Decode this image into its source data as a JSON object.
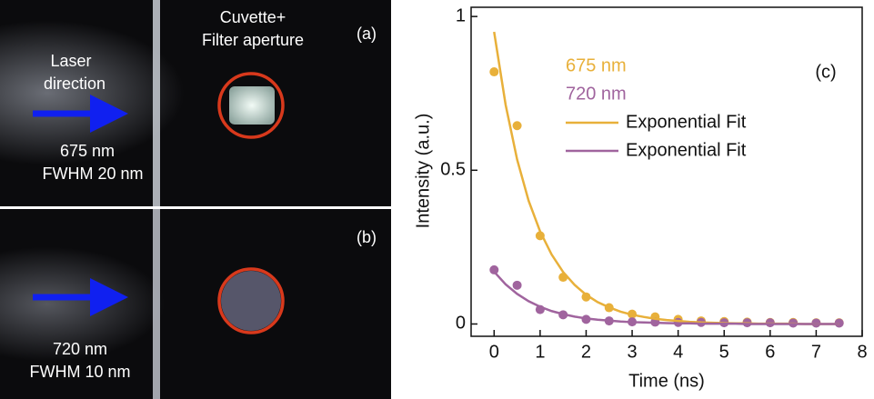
{
  "panels": [
    {
      "label": "(a)",
      "aperture_title": [
        "Cuvette+",
        "Filter aperture"
      ],
      "laser_label": [
        "Laser",
        "direction"
      ],
      "wavelength": "675 nm",
      "fwhm": "FWHM 20 nm"
    },
    {
      "label": "(b)",
      "wavelength": "720 nm",
      "fwhm": "FWHM 10 nm"
    }
  ],
  "chart_data": {
    "type": "scatter",
    "annotation": "(c)",
    "x_label": "Time (ns)",
    "y_label": "Intensity (a.u.)",
    "xlim": [
      -0.5,
      8
    ],
    "ylim": [
      -0.04,
      1.03
    ],
    "xticks": [
      0,
      1,
      2,
      3,
      4,
      5,
      6,
      7,
      8
    ],
    "yticks": [
      0,
      0.5,
      1
    ],
    "series": [
      {
        "name": "675 nm",
        "type": "scatter",
        "color": "#e8b03a",
        "x": [
          0,
          0.5,
          1,
          1.5,
          2,
          2.5,
          3,
          3.5,
          4,
          4.5,
          5,
          5.5,
          6,
          6.5,
          7,
          7.5
        ],
        "values": [
          0.82,
          0.645,
          0.287,
          0.152,
          0.088,
          0.053,
          0.032,
          0.023,
          0.015,
          0.01,
          0.008,
          0.006,
          0.005,
          0.005,
          0.004,
          0.004
        ]
      },
      {
        "name": "720 nm",
        "type": "scatter",
        "color": "#a0649e",
        "x": [
          0,
          0.5,
          1,
          1.5,
          2,
          2.5,
          3,
          3.5,
          4,
          4.5,
          5,
          5.5,
          6,
          6.5,
          7,
          7.5
        ],
        "values": [
          0.176,
          0.126,
          0.047,
          0.03,
          0.015,
          0.01,
          0.007,
          0.006,
          0.005,
          0.005,
          0.004,
          0.004,
          0.004,
          0.003,
          0.003,
          0.003
        ]
      },
      {
        "name": "Exponential Fit",
        "type": "line",
        "color": "#e8b03a",
        "x": [
          0,
          0.25,
          0.5,
          0.75,
          1,
          1.25,
          1.5,
          1.75,
          2,
          2.25,
          2.5,
          2.75,
          3,
          3.25,
          3.5,
          3.75,
          4,
          4.25,
          4.5,
          4.75,
          5,
          5.25,
          5.5,
          5.75,
          6,
          6.25,
          6.5,
          6.75,
          7,
          7.25,
          7.5
        ],
        "values": [
          0.95,
          0.713,
          0.535,
          0.401,
          0.301,
          0.226,
          0.169,
          0.127,
          0.095,
          0.071,
          0.054,
          0.04,
          0.03,
          0.023,
          0.017,
          0.013,
          0.01,
          0.007,
          0.005,
          0.004,
          0.003,
          0.002,
          0.002,
          0.001,
          0.001,
          0.001,
          0.001,
          0,
          0,
          0,
          0
        ]
      },
      {
        "name": "Exponential Fit",
        "type": "line",
        "color": "#a0649e",
        "x": [
          0,
          0.25,
          0.5,
          0.75,
          1,
          1.25,
          1.5,
          1.75,
          2,
          2.25,
          2.5,
          2.75,
          3,
          3.25,
          3.5,
          3.75,
          4,
          4.25,
          4.5,
          4.75,
          5,
          5.25,
          5.5,
          5.75,
          6,
          6.25,
          6.5,
          6.75,
          7,
          7.25,
          7.5
        ],
        "values": [
          0.17,
          0.129,
          0.098,
          0.074,
          0.056,
          0.042,
          0.032,
          0.024,
          0.018,
          0.014,
          0.011,
          0.008,
          0.006,
          0.005,
          0.004,
          0.003,
          0.002,
          0.002,
          0.001,
          0.001,
          0.001,
          0.001,
          0,
          0,
          0,
          0,
          0,
          0,
          0,
          0,
          0
        ]
      }
    ]
  }
}
